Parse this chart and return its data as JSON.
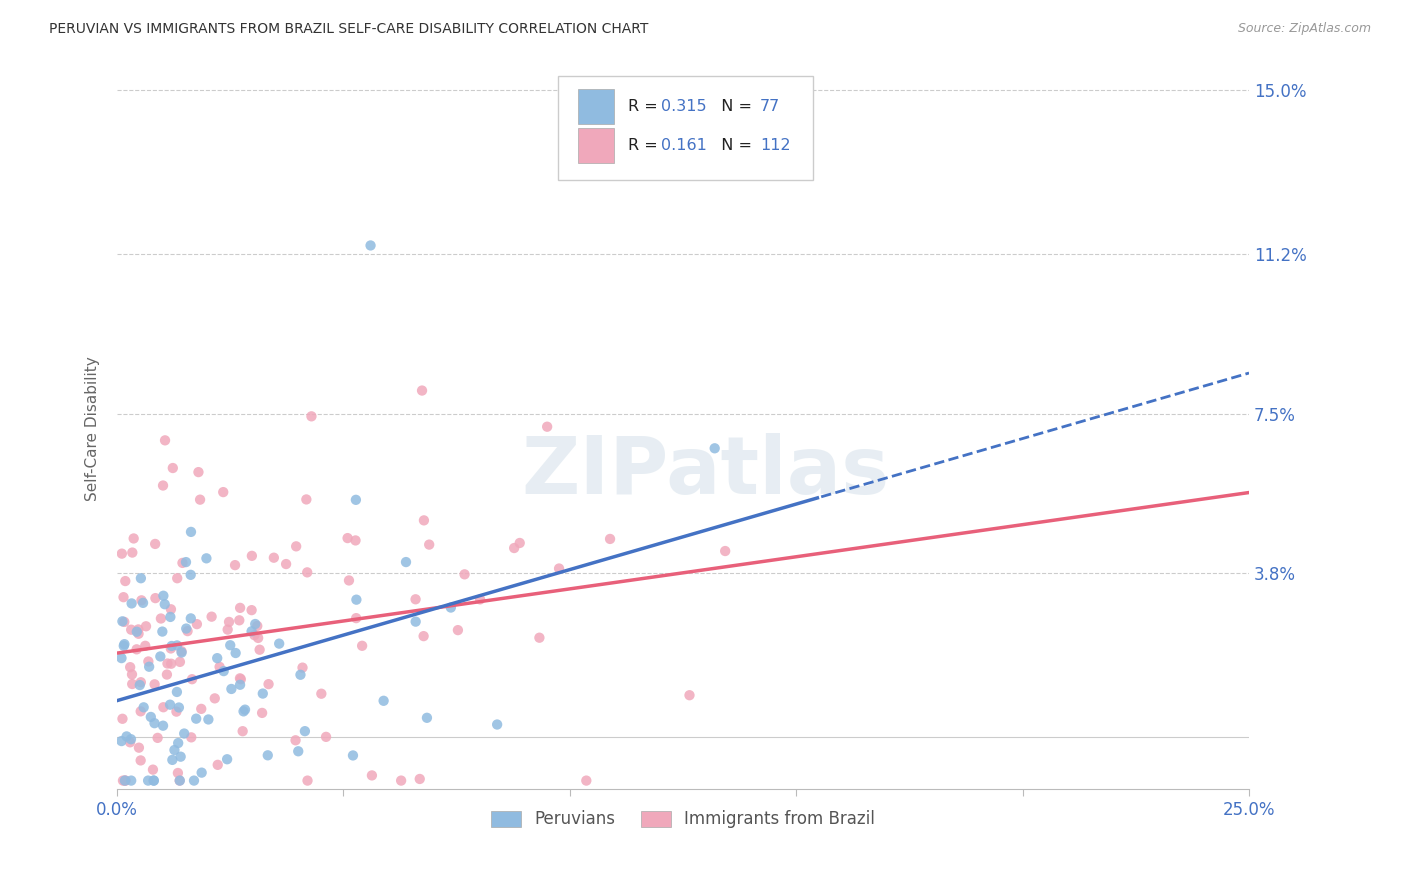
{
  "title": "PERUVIAN VS IMMIGRANTS FROM BRAZIL SELF-CARE DISABILITY CORRELATION CHART",
  "source": "Source: ZipAtlas.com",
  "ylabel": "Self-Care Disability",
  "xlim": [
    0.0,
    0.25
  ],
  "ylim": [
    -0.012,
    0.155
  ],
  "ytick_positions": [
    0.0,
    0.038,
    0.075,
    0.112,
    0.15
  ],
  "ytick_labels": [
    "",
    "3.8%",
    "7.5%",
    "11.2%",
    "15.0%"
  ],
  "grid_color": "#cccccc",
  "background_color": "#ffffff",
  "blue_color": "#90BBE0",
  "pink_color": "#F0A8BB",
  "blue_line_color": "#4472C4",
  "pink_line_color": "#E8607A",
  "R_blue": 0.315,
  "N_blue": 77,
  "R_pink": 0.161,
  "N_pink": 112,
  "blue_intercept": 0.01,
  "blue_slope": 0.2,
  "pink_intercept": 0.025,
  "pink_slope": 0.055,
  "solid_cutoff": 0.155
}
